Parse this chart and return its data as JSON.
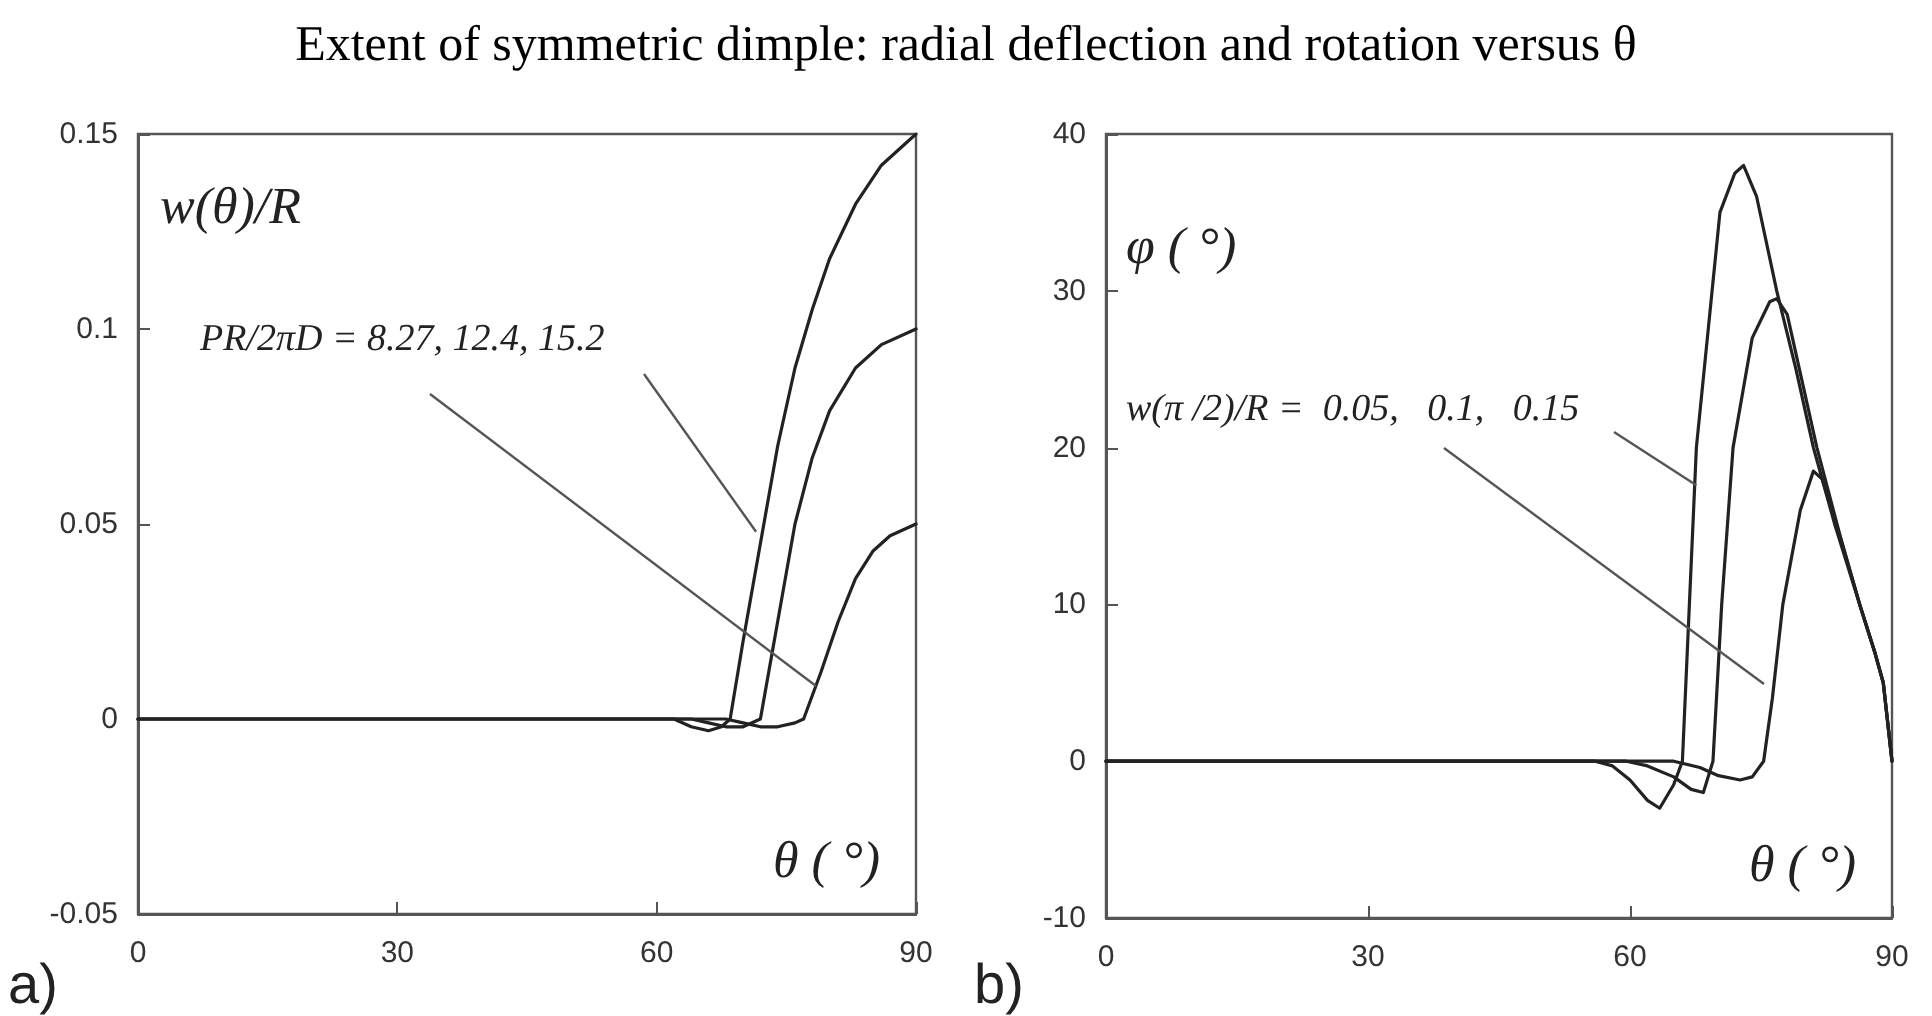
{
  "chart_data": [
    {
      "type": "line",
      "title": "Extent of symmetric dimple: radial deflection and rotation versus θ",
      "xlabel": "θ ( °)",
      "ylabel": "w(θ)/R",
      "annotations": [
        {
          "text": "PR/2πD = 8.27, 12.4, 15.2",
          "x": 71.5,
          "y": 0.048
        },
        "a)"
      ],
      "xlim": [
        0,
        90
      ],
      "xticks": [
        0,
        30,
        60,
        90
      ],
      "ylim": [
        -0.05,
        0.15
      ],
      "yticks": [
        -0.05,
        0,
        0.05,
        0.1,
        0.15
      ],
      "marker": "none",
      "line_style": "solid",
      "series": [
        {
          "color": "#222222",
          "x": [
            0,
            30,
            60,
            62,
            64,
            66,
            67.5,
            68.5,
            70,
            72,
            74,
            76,
            78,
            80,
            83,
            86,
            90
          ],
          "values": [
            0,
            0,
            0,
            0,
            -0.002,
            -0.003,
            -0.002,
            0,
            0.02,
            0.045,
            0.07,
            0.09,
            0.105,
            0.118,
            0.132,
            0.142,
            0.15
          ]
        },
        {
          "color": "#222222",
          "x": [
            0,
            30,
            64,
            66,
            68,
            70,
            72,
            74,
            76,
            78,
            80,
            83,
            86,
            90
          ],
          "values": [
            0,
            0,
            0,
            -0.001,
            -0.002,
            -0.002,
            0,
            0.025,
            0.05,
            0.067,
            0.079,
            0.09,
            0.096,
            0.1
          ]
        },
        {
          "color": "#222222",
          "x": [
            0,
            30,
            68,
            70,
            72,
            74,
            76,
            77,
            79,
            81,
            83,
            85,
            87,
            90
          ],
          "values": [
            0,
            0,
            0,
            -0.001,
            -0.002,
            -0.002,
            -0.001,
            0,
            0.012,
            0.025,
            0.036,
            0.043,
            0.047,
            0.05
          ]
        }
      ]
    },
    {
      "type": "line",
      "xlabel": "θ ( °)",
      "ylabel": "φ ( °)",
      "annotations": [
        {
          "text": "w(π /2)/R =  0.05,   0.1,   0.15",
          "x": 67.6,
          "y": 17.6
        },
        "b)"
      ],
      "xlim": [
        0,
        90
      ],
      "xticks": [
        0,
        30,
        60,
        90
      ],
      "ylim": [
        -10,
        40
      ],
      "yticks": [
        -10,
        0,
        10,
        20,
        30,
        40
      ],
      "marker": "none",
      "line_style": "solid",
      "series": [
        {
          "color": "#222222",
          "x": [
            0,
            30,
            56,
            58,
            60,
            62,
            63.4,
            65,
            66,
            67.6,
            70.3,
            72,
            73,
            74.5,
            76.8,
            79,
            81,
            83.5,
            86.3,
            88,
            89,
            90
          ],
          "values": [
            0,
            0,
            0,
            -0.3,
            -1.2,
            -2.5,
            -3,
            -1.5,
            0,
            20,
            35,
            37.5,
            38,
            36,
            30,
            25,
            20,
            15,
            10,
            7,
            5,
            0
          ]
        },
        {
          "color": "#222222",
          "x": [
            0,
            30,
            59.6,
            62,
            65,
            67,
            68.4,
            69.5,
            70.5,
            71.8,
            74,
            76,
            76.8,
            78,
            81.4,
            84,
            86.3,
            88,
            89,
            90
          ],
          "values": [
            0,
            0,
            0,
            -0.3,
            -1,
            -1.8,
            -2,
            0,
            10,
            20,
            27,
            29.3,
            29.5,
            28.5,
            20,
            14.5,
            10,
            7,
            5,
            0
          ]
        },
        {
          "color": "#222222",
          "x": [
            0,
            30,
            65,
            68,
            70,
            72.6,
            74,
            75.3,
            76.3,
            77.5,
            79.5,
            81,
            82,
            83.7,
            86.3,
            88,
            89,
            90
          ],
          "values": [
            0,
            0,
            0,
            -0.4,
            -0.9,
            -1.2,
            -1,
            0,
            4,
            10,
            16,
            18.5,
            18,
            15,
            10,
            7,
            5,
            0
          ]
        }
      ]
    }
  ]
}
